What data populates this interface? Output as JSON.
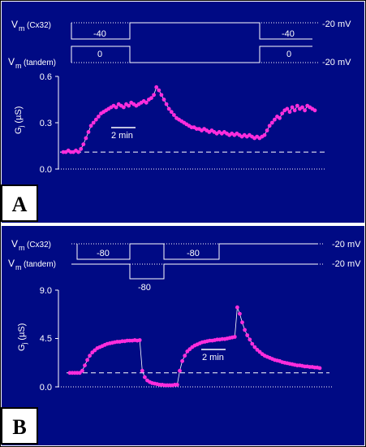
{
  "colors": {
    "background": "#000a84",
    "trace": "#ffffff",
    "points": "#ff2ddc",
    "border": "#000000"
  },
  "chart_data": [
    {
      "type": "scatter",
      "panel_label": "A",
      "protocol": {
        "rows": [
          {
            "label_main": "V",
            "label_sub": "m",
            "label_paren": "(Cx32)",
            "hold_label": "-20 mV",
            "step_labels": [
              "-40",
              "-40"
            ]
          },
          {
            "label_main": "V",
            "label_sub": "m",
            "label_paren": "(tandem)",
            "hold_label": "-20 mV",
            "step_labels": [
              "0",
              "0"
            ]
          }
        ]
      },
      "ylabel_main": "G",
      "ylabel_sub": "j",
      "ylabel_unit": " (µS)",
      "yticks": [
        "0.0",
        "0.3",
        "0.6"
      ],
      "ylim": [
        0,
        0.6
      ],
      "xlim": [
        0,
        100
      ],
      "baseline": 0.11,
      "scalebar_label": "2 min",
      "points": [
        [
          0,
          0.11
        ],
        [
          1,
          0.11
        ],
        [
          2,
          0.12
        ],
        [
          3,
          0.11
        ],
        [
          4,
          0.11
        ],
        [
          5,
          0.12
        ],
        [
          6,
          0.11
        ],
        [
          7,
          0.13
        ],
        [
          8,
          0.16
        ],
        [
          9,
          0.2
        ],
        [
          10,
          0.24
        ],
        [
          11,
          0.28
        ],
        [
          12,
          0.3
        ],
        [
          13,
          0.32
        ],
        [
          14,
          0.34
        ],
        [
          15,
          0.36
        ],
        [
          16,
          0.37
        ],
        [
          17,
          0.38
        ],
        [
          18,
          0.39
        ],
        [
          19,
          0.4
        ],
        [
          20,
          0.41
        ],
        [
          21,
          0.4
        ],
        [
          22,
          0.42
        ],
        [
          23,
          0.41
        ],
        [
          24,
          0.4
        ],
        [
          25,
          0.42
        ],
        [
          26,
          0.41
        ],
        [
          27,
          0.43
        ],
        [
          28,
          0.42
        ],
        [
          29,
          0.41
        ],
        [
          30,
          0.42
        ],
        [
          31,
          0.43
        ],
        [
          32,
          0.44
        ],
        [
          33,
          0.43
        ],
        [
          34,
          0.45
        ],
        [
          35,
          0.46
        ],
        [
          36,
          0.48
        ],
        [
          37,
          0.53
        ],
        [
          38,
          0.51
        ],
        [
          39,
          0.48
        ],
        [
          40,
          0.45
        ],
        [
          41,
          0.42
        ],
        [
          42,
          0.39
        ],
        [
          43,
          0.37
        ],
        [
          44,
          0.35
        ],
        [
          45,
          0.33
        ],
        [
          46,
          0.32
        ],
        [
          47,
          0.31
        ],
        [
          48,
          0.3
        ],
        [
          49,
          0.29
        ],
        [
          50,
          0.28
        ],
        [
          51,
          0.27
        ],
        [
          52,
          0.27
        ],
        [
          53,
          0.26
        ],
        [
          54,
          0.26
        ],
        [
          55,
          0.25
        ],
        [
          56,
          0.26
        ],
        [
          57,
          0.25
        ],
        [
          58,
          0.24
        ],
        [
          59,
          0.25
        ],
        [
          60,
          0.24
        ],
        [
          61,
          0.23
        ],
        [
          62,
          0.24
        ],
        [
          63,
          0.23
        ],
        [
          64,
          0.24
        ],
        [
          65,
          0.23
        ],
        [
          66,
          0.22
        ],
        [
          67,
          0.23
        ],
        [
          68,
          0.22
        ],
        [
          69,
          0.23
        ],
        [
          70,
          0.22
        ],
        [
          71,
          0.21
        ],
        [
          72,
          0.22
        ],
        [
          73,
          0.21
        ],
        [
          74,
          0.22
        ],
        [
          75,
          0.21
        ],
        [
          76,
          0.2
        ],
        [
          77,
          0.21
        ],
        [
          78,
          0.2
        ],
        [
          79,
          0.21
        ],
        [
          80,
          0.22
        ],
        [
          81,
          0.25
        ],
        [
          82,
          0.28
        ],
        [
          83,
          0.3
        ],
        [
          84,
          0.32
        ],
        [
          85,
          0.34
        ],
        [
          86,
          0.33
        ],
        [
          87,
          0.36
        ],
        [
          88,
          0.38
        ],
        [
          89,
          0.39
        ],
        [
          90,
          0.37
        ],
        [
          91,
          0.4
        ],
        [
          92,
          0.38
        ],
        [
          93,
          0.41
        ],
        [
          94,
          0.39
        ],
        [
          95,
          0.4
        ],
        [
          96,
          0.38
        ],
        [
          97,
          0.41
        ],
        [
          98,
          0.4
        ],
        [
          99,
          0.39
        ],
        [
          100,
          0.38
        ]
      ]
    },
    {
      "type": "scatter",
      "panel_label": "B",
      "protocol": {
        "rows": [
          {
            "label_main": "V",
            "label_sub": "m",
            "label_paren": "(Cx32)",
            "hold_label": "-20 mV",
            "step_labels": [
              "-80",
              "-80"
            ]
          },
          {
            "label_main": "V",
            "label_sub": "m",
            "label_paren": "(tandem)",
            "hold_label": "-20 mV",
            "step_labels": [
              "-80"
            ]
          }
        ]
      },
      "ylabel_main": "G",
      "ylabel_sub": "j",
      "ylabel_unit": " (µS)",
      "yticks": [
        "0.0",
        "4.5",
        "9.0"
      ],
      "ylim": [
        0,
        9
      ],
      "xlim": [
        0,
        100
      ],
      "baseline": 1.3,
      "scalebar_label": "2 min",
      "points": [
        [
          0,
          1.3
        ],
        [
          1,
          1.3
        ],
        [
          2,
          1.3
        ],
        [
          3,
          1.3
        ],
        [
          4,
          1.3
        ],
        [
          5,
          1.5
        ],
        [
          6,
          2.0
        ],
        [
          7,
          2.5
        ],
        [
          8,
          2.9
        ],
        [
          9,
          3.2
        ],
        [
          10,
          3.4
        ],
        [
          11,
          3.6
        ],
        [
          12,
          3.7
        ],
        [
          13,
          3.8
        ],
        [
          14,
          3.9
        ],
        [
          15,
          4.0
        ],
        [
          16,
          4.05
        ],
        [
          17,
          4.1
        ],
        [
          18,
          4.15
        ],
        [
          19,
          4.2
        ],
        [
          20,
          4.2
        ],
        [
          21,
          4.25
        ],
        [
          22,
          4.25
        ],
        [
          23,
          4.3
        ],
        [
          24,
          4.3
        ],
        [
          25,
          4.3
        ],
        [
          26,
          4.35
        ],
        [
          27,
          4.3
        ],
        [
          28,
          4.35
        ],
        [
          29,
          1.5
        ],
        [
          30,
          0.9
        ],
        [
          31,
          0.6
        ],
        [
          32,
          0.45
        ],
        [
          33,
          0.35
        ],
        [
          34,
          0.3
        ],
        [
          35,
          0.25
        ],
        [
          36,
          0.2
        ],
        [
          37,
          0.2
        ],
        [
          38,
          0.15
        ],
        [
          39,
          0.15
        ],
        [
          40,
          0.15
        ],
        [
          41,
          0.15
        ],
        [
          42,
          0.2
        ],
        [
          43,
          0.2
        ],
        [
          44,
          1.5
        ],
        [
          45,
          2.4
        ],
        [
          46,
          2.9
        ],
        [
          47,
          3.3
        ],
        [
          48,
          3.5
        ],
        [
          49,
          3.7
        ],
        [
          50,
          3.85
        ],
        [
          51,
          3.95
        ],
        [
          52,
          4.05
        ],
        [
          53,
          4.15
        ],
        [
          54,
          4.2
        ],
        [
          55,
          4.25
        ],
        [
          56,
          4.3
        ],
        [
          57,
          4.3
        ],
        [
          58,
          4.35
        ],
        [
          59,
          4.4
        ],
        [
          60,
          4.4
        ],
        [
          61,
          4.45
        ],
        [
          62,
          4.45
        ],
        [
          63,
          4.5
        ],
        [
          64,
          4.55
        ],
        [
          65,
          4.6
        ],
        [
          66,
          4.65
        ],
        [
          67,
          7.4
        ],
        [
          68,
          6.8
        ],
        [
          69,
          6.0
        ],
        [
          70,
          5.3
        ],
        [
          71,
          4.8
        ],
        [
          72,
          4.4
        ],
        [
          73,
          4.0
        ],
        [
          74,
          3.7
        ],
        [
          75,
          3.45
        ],
        [
          76,
          3.25
        ],
        [
          77,
          3.05
        ],
        [
          78,
          2.9
        ],
        [
          79,
          2.8
        ],
        [
          80,
          2.7
        ],
        [
          81,
          2.6
        ],
        [
          82,
          2.5
        ],
        [
          83,
          2.45
        ],
        [
          84,
          2.4
        ],
        [
          85,
          2.3
        ],
        [
          86,
          2.25
        ],
        [
          87,
          2.2
        ],
        [
          88,
          2.15
        ],
        [
          89,
          2.1
        ],
        [
          90,
          2.05
        ],
        [
          91,
          2.0
        ],
        [
          92,
          2.0
        ],
        [
          93,
          1.95
        ],
        [
          94,
          1.9
        ],
        [
          95,
          1.9
        ],
        [
          96,
          1.85
        ],
        [
          97,
          1.85
        ],
        [
          98,
          1.8
        ],
        [
          99,
          1.8
        ],
        [
          100,
          1.75
        ]
      ]
    }
  ]
}
